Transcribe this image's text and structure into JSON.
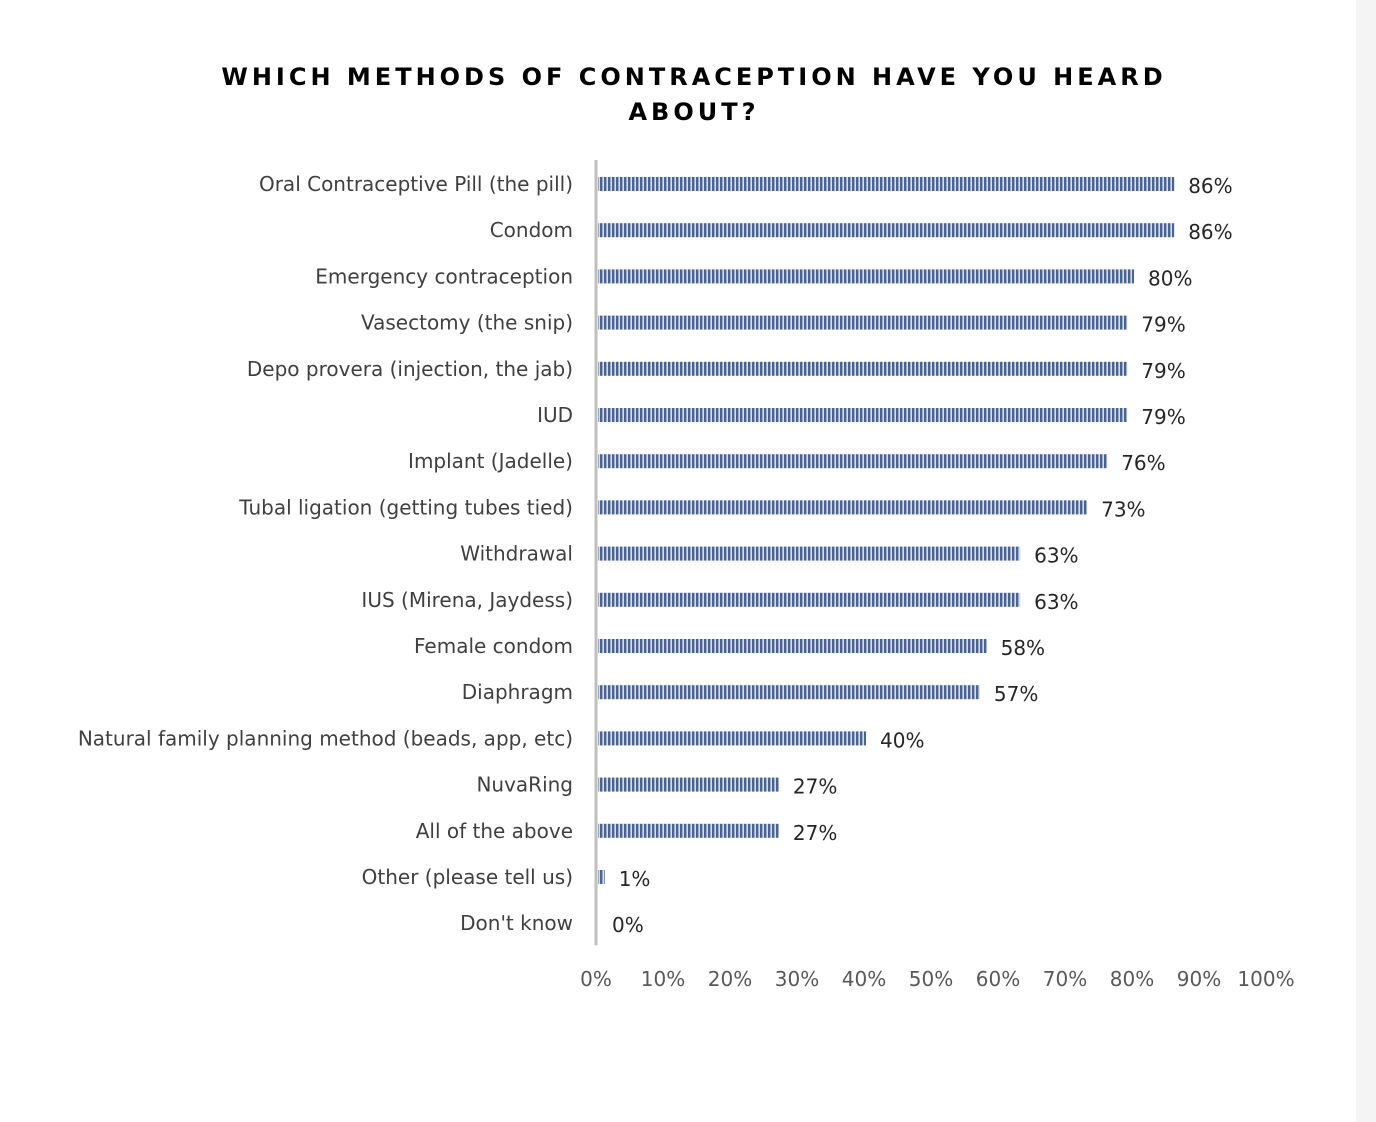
{
  "chart_data": {
    "type": "bar",
    "orientation": "horizontal",
    "title": "WHICH METHODS OF CONTRACEPTION HAVE YOU HEARD ABOUT?",
    "categories": [
      "Oral Contraceptive Pill (the pill)",
      "Condom",
      "Emergency contraception",
      "Vasectomy (the snip)",
      "Depo provera (injection, the jab)",
      "IUD",
      "Implant (Jadelle)",
      "Tubal ligation (getting tubes tied)",
      "Withdrawal",
      "IUS (Mirena, Jaydess)",
      "Female condom",
      "Diaphragm",
      "Natural family planning method (beads, app, etc)",
      "NuvaRing",
      "All of the above",
      "Other (please tell us)",
      "Don't know"
    ],
    "values": [
      86,
      86,
      80,
      79,
      79,
      79,
      76,
      73,
      63,
      63,
      58,
      57,
      40,
      27,
      27,
      1,
      0
    ],
    "value_labels": [
      "86%",
      "86%",
      "80%",
      "79%",
      "79%",
      "79%",
      "76%",
      "73%",
      "63%",
      "63%",
      "58%",
      "57%",
      "40%",
      "27%",
      "27%",
      "1%",
      "0%"
    ],
    "xlim": [
      0,
      100
    ],
    "x_ticks": [
      "0%",
      "10%",
      "20%",
      "30%",
      "40%",
      "50%",
      "60%",
      "70%",
      "80%",
      "90%",
      "100%"
    ],
    "grid": false,
    "legend": "none",
    "bar_color": "#4a6392",
    "bar_pattern": "vertical-stripes"
  }
}
